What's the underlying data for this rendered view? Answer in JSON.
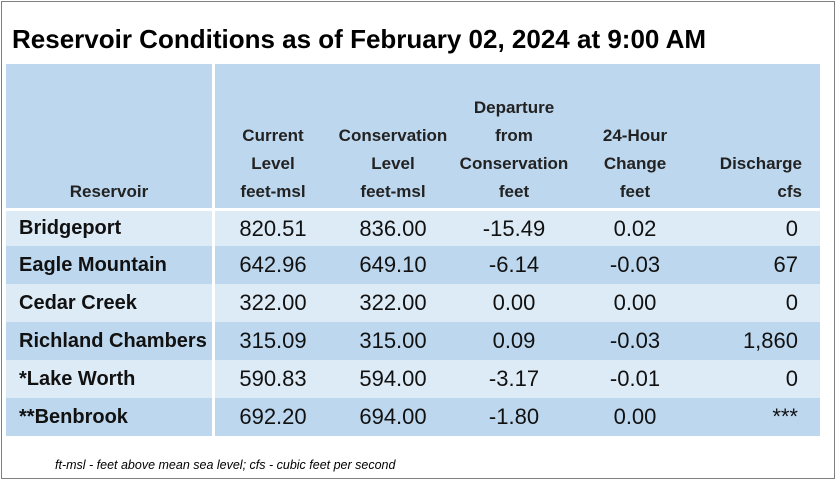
{
  "title": "Reservoir Conditions as of February 02, 2024 at 9:00 AM",
  "columns": [
    {
      "lines": [
        "Reservoir"
      ]
    },
    {
      "lines": [
        "Current",
        "Level",
        "feet-msl"
      ]
    },
    {
      "lines": [
        "Conservation",
        "Level",
        "feet-msl"
      ]
    },
    {
      "lines": [
        "Departure",
        "from",
        "Conservation",
        "feet"
      ]
    },
    {
      "lines": [
        "24-Hour",
        "Change",
        "feet"
      ]
    },
    {
      "lines": [
        "Discharge",
        "cfs"
      ]
    }
  ],
  "rows": [
    {
      "name": "Bridgeport",
      "current": "820.51",
      "conservation": "836.00",
      "departure": "-15.49",
      "change": "0.02",
      "discharge": "0"
    },
    {
      "name": "Eagle Mountain",
      "current": "642.96",
      "conservation": "649.10",
      "departure": "-6.14",
      "change": "-0.03",
      "discharge": "67"
    },
    {
      "name": "Cedar Creek",
      "current": "322.00",
      "conservation": "322.00",
      "departure": "0.00",
      "change": "0.00",
      "discharge": "0"
    },
    {
      "name": "Richland Chambers",
      "current": "315.09",
      "conservation": "315.00",
      "departure": "0.09",
      "change": "-0.03",
      "discharge": "1,860"
    },
    {
      "name": "*Lake Worth",
      "current": "590.83",
      "conservation": "594.00",
      "departure": "-3.17",
      "change": "-0.01",
      "discharge": "0"
    },
    {
      "name": "**Benbrook",
      "current": "692.20",
      "conservation": "694.00",
      "departure": "-1.80",
      "change": "0.00",
      "discharge": "***"
    }
  ],
  "footnote": "ft-msl - feet above mean sea level; cfs - cubic feet per second",
  "colors": {
    "header_bg": "#bdd7ee",
    "row_light": "#ddebf7",
    "row_dark": "#bdd7ee"
  }
}
